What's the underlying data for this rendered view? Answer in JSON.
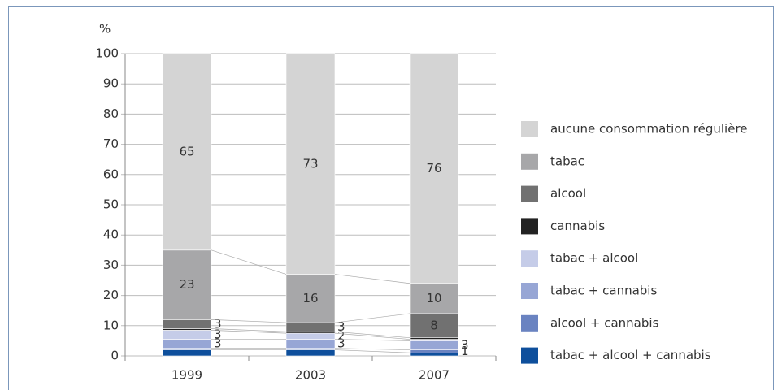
{
  "chart_data": {
    "type": "stacked_bar",
    "y_label": "%",
    "categories": [
      "1999",
      "2003",
      "2007"
    ],
    "ylim": [
      0,
      100
    ],
    "yticks": [
      0,
      10,
      20,
      30,
      40,
      50,
      60,
      70,
      80,
      90,
      100
    ],
    "grid": true,
    "series": [
      {
        "name": "tabac + alcool + cannabis",
        "color": "#0e4f9c",
        "values": [
          2,
          2,
          1
        ],
        "value_labels": [
          null,
          null,
          null
        ]
      },
      {
        "name": "alcool + cannabis",
        "color": "#6a83c1",
        "values": [
          0.5,
          0.5,
          1
        ],
        "value_labels": [
          null,
          null,
          "1"
        ]
      },
      {
        "name": "tabac + cannabis",
        "color": "#97a6d5",
        "values": [
          3,
          3,
          3
        ],
        "value_labels": [
          "3",
          "3",
          "3"
        ]
      },
      {
        "name": "tabac + alcool",
        "color": "#c5cce8",
        "values": [
          3,
          2,
          0.5
        ],
        "value_labels": [
          "3",
          "2",
          null
        ]
      },
      {
        "name": "cannabis",
        "color": "#222222",
        "values": [
          0.5,
          0.5,
          0.5
        ],
        "value_labels": [
          null,
          null,
          null
        ]
      },
      {
        "name": "alcool",
        "color": "#717171",
        "values": [
          3,
          3,
          8
        ],
        "value_labels": [
          "3",
          "3",
          "8"
        ]
      },
      {
        "name": "tabac",
        "color": "#a7a7a9",
        "values": [
          23,
          16,
          10
        ],
        "value_labels": [
          "23",
          "16",
          "10"
        ]
      },
      {
        "name": "aucune consommation régulière",
        "color": "#d4d4d4",
        "values": [
          65,
          73,
          76
        ],
        "value_labels": [
          "65",
          "73",
          "76"
        ]
      }
    ]
  }
}
